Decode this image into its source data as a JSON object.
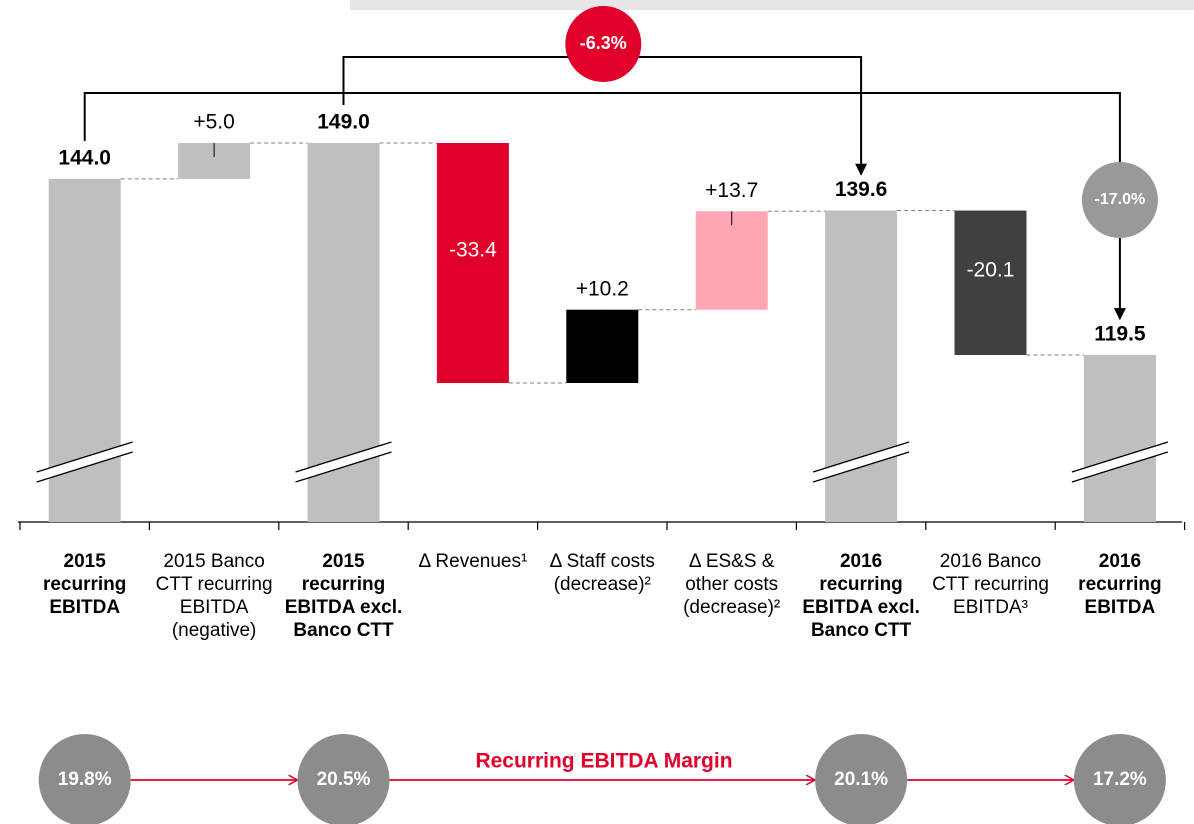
{
  "chart_data": {
    "type": "waterfall",
    "categories": [
      "2015 recurring EBITDA",
      "2015 Banco CTT recurring EBITDA (negative)",
      "2015 recurring EBITDA excl. Banco CTT",
      "Δ Revenues¹",
      "Δ Staff costs (decrease)²",
      "Δ ES&S & other costs (decrease)²",
      "2016 recurring EBITDA excl. Banco CTT",
      "2016 Banco CTT recurring EBITDA³",
      "2016 recurring EBITDA"
    ],
    "measure": [
      "total",
      "relative",
      "total",
      "relative",
      "relative",
      "relative",
      "total",
      "relative",
      "total"
    ],
    "values": [
      144.0,
      5.0,
      149.0,
      -33.4,
      10.2,
      13.7,
      139.6,
      -20.1,
      119.5
    ],
    "value_labels": [
      "144.0",
      "+5.0",
      "149.0",
      "-33.4",
      "+10.2",
      "+13.7",
      "139.6",
      "-20.1",
      "119.5"
    ],
    "colors": [
      "#bfbfbf",
      "#bfbfbf",
      "#bfbfbf",
      "#e0002a",
      "#000000",
      "#ffa6b5",
      "#bfbfbf",
      "#404040",
      "#bfbfbf"
    ],
    "annotations": [
      "-6.3%",
      "-17.0%"
    ],
    "margins": {
      "title": "Recurring EBITDA Margin",
      "values": [
        19.8,
        null,
        20.5,
        null,
        null,
        null,
        20.1,
        null,
        17.2
      ],
      "value_labels": [
        "19.8%",
        null,
        "20.5%",
        null,
        null,
        null,
        "20.1%",
        null,
        "17.2%"
      ]
    }
  }
}
